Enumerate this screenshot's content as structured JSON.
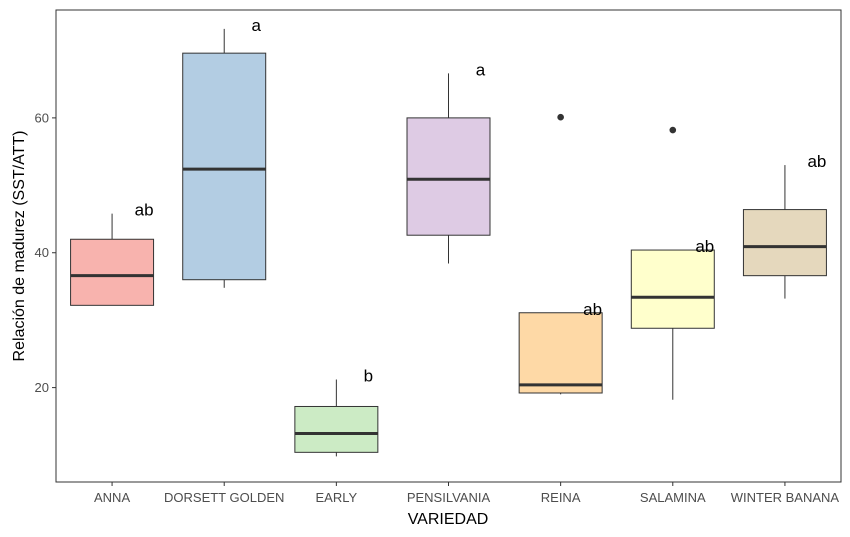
{
  "chart_data": {
    "type": "boxplot",
    "xlabel": "VARIEDAD",
    "ylabel": "Relación de madurez (SST/ATT)",
    "ylim": [
      6,
      76
    ],
    "yticks": [
      20,
      40,
      60
    ],
    "grid": false,
    "legend": "none",
    "categories": [
      "ANNA",
      "DORSETT GOLDEN",
      "EARLY",
      "PENSILVANIA",
      "REINA",
      "SALAMINA",
      "WINTER BANANA"
    ],
    "boxes": [
      {
        "category": "ANNA",
        "whisker_low": 32.2,
        "q1": 32.2,
        "median": 36.6,
        "q3": 42.0,
        "whisker_high": 45.8,
        "outliers": [],
        "letter": "ab",
        "color": "#F8B3AE"
      },
      {
        "category": "DORSETT GOLDEN",
        "whisker_low": 34.8,
        "q1": 36.0,
        "median": 52.4,
        "q3": 69.6,
        "whisker_high": 73.2,
        "outliers": [],
        "letter": "a",
        "color": "#B3CDE3"
      },
      {
        "category": "EARLY",
        "whisker_low": 9.8,
        "q1": 10.4,
        "median": 13.2,
        "q3": 17.2,
        "whisker_high": 21.2,
        "outliers": [],
        "letter": "b",
        "color": "#CCEBC5"
      },
      {
        "category": "PENSILVANIA",
        "whisker_low": 38.4,
        "q1": 42.6,
        "median": 50.9,
        "q3": 60.0,
        "whisker_high": 66.6,
        "outliers": [],
        "letter": "a",
        "color": "#DECBE4"
      },
      {
        "category": "REINA",
        "whisker_low": 19.0,
        "q1": 19.2,
        "median": 20.4,
        "q3": 31.1,
        "whisker_high": 31.1,
        "outliers": [
          60.1
        ],
        "letter": "ab",
        "color": "#FED9A6"
      },
      {
        "category": "SALAMINA",
        "whisker_low": 18.2,
        "q1": 28.8,
        "median": 33.4,
        "q3": 40.4,
        "whisker_high": 40.4,
        "outliers": [
          58.2
        ],
        "letter": "ab",
        "color": "#FFFFCC"
      },
      {
        "category": "WINTER BANANA",
        "whisker_low": 33.2,
        "q1": 36.6,
        "median": 40.9,
        "q3": 46.4,
        "whisker_high": 53.0,
        "outliers": [],
        "letter": "ab",
        "color": "#E5D8BD"
      }
    ]
  }
}
